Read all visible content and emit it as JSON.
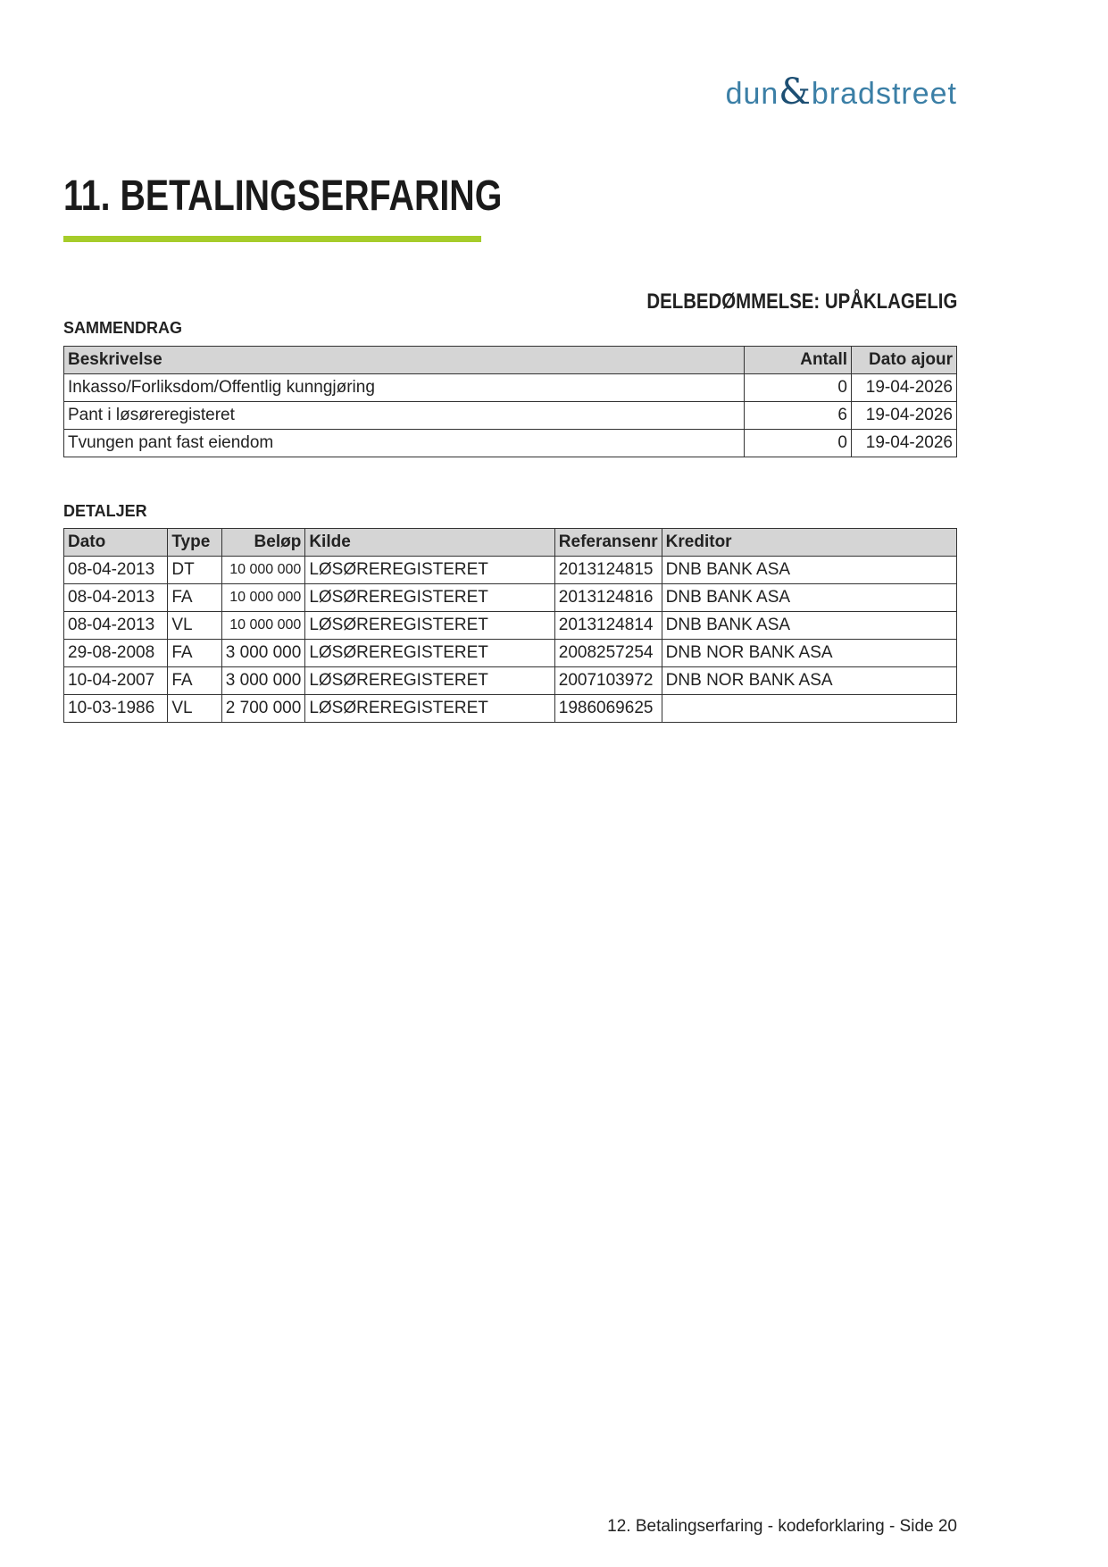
{
  "logo": {
    "part1": "dun",
    "amp": "&",
    "part2": "bradstreet"
  },
  "header": {
    "title": "11. BETALINGSERFARING"
  },
  "rating": "DELBEDØMMELSE: UPÅKLAGELIG",
  "summary": {
    "heading": "SAMMENDRAG",
    "columns": [
      "Beskrivelse",
      "Antall",
      "Dato ajour"
    ],
    "rows": [
      [
        "Inkasso/Forliksdom/Offentlig kunngjøring",
        "0",
        "19-04-2026"
      ],
      [
        "Pant i løsøreregisteret",
        "6",
        "19-04-2026"
      ],
      [
        "Tvungen pant fast eiendom",
        "0",
        "19-04-2026"
      ]
    ]
  },
  "details": {
    "heading": "DETALJER",
    "columns": [
      "Dato",
      "Type",
      "Beløp",
      "Kilde",
      "Referansenr",
      "Kreditor"
    ],
    "rows": [
      [
        "08-04-2013",
        "DT",
        "10 000 000",
        "LØSØREREGISTERET",
        "2013124815",
        "DNB BANK ASA"
      ],
      [
        "08-04-2013",
        "FA",
        "10 000 000",
        "LØSØREREGISTERET",
        "2013124816",
        "DNB BANK ASA"
      ],
      [
        "08-04-2013",
        "VL",
        "10 000 000",
        "LØSØREREGISTERET",
        "2013124814",
        "DNB BANK ASA"
      ],
      [
        "29-08-2008",
        "FA",
        "3 000 000",
        "LØSØREREGISTERET",
        "2008257254",
        "DNB NOR BANK ASA"
      ],
      [
        "10-04-2007",
        "FA",
        "3 000 000",
        "LØSØREREGISTERET",
        "2007103972",
        "DNB NOR BANK ASA"
      ],
      [
        "10-03-1986",
        "VL",
        "2 700 000",
        "LØSØREREGISTERET",
        "1986069625",
        null
      ]
    ]
  },
  "footer": "12. Betalingserfaring - kodeforklaring - Side 20"
}
